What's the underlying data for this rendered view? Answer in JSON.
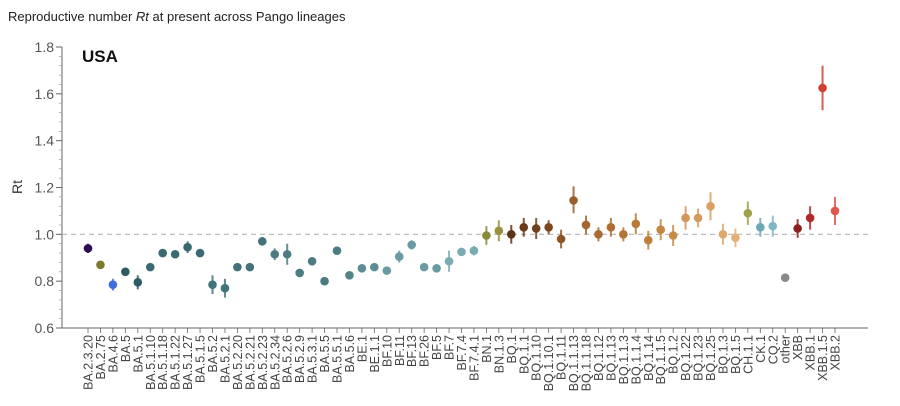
{
  "title_prefix": "Reproductive number ",
  "title_symbol": "Rt",
  "title_suffix": " at present across Pango lineages",
  "chart_data": {
    "type": "scatter",
    "subtype": "point-range",
    "panel_label": "USA",
    "ylabel": "Rt",
    "ylim": [
      0.6,
      1.8
    ],
    "yticks": [
      0.6,
      0.8,
      1.0,
      1.2,
      1.4,
      1.6,
      1.8
    ],
    "ytick_labels": [
      "0.6",
      "0.8",
      "1.0",
      "1.2",
      "1.4",
      "1.6",
      "1.8"
    ],
    "reference_line": 1.0,
    "reference_line_style": "dashed",
    "grid": false,
    "categories": [
      "BA.2.3.20",
      "BA.2.75",
      "BA.4.6",
      "BA.5",
      "BA.5.1",
      "BA.5.1.10",
      "BA.5.1.18",
      "BA.5.1.22",
      "BA.5.1.27",
      "BA.5.1.5",
      "BA.5.2",
      "BA.5.2.1",
      "BA.5.2.20",
      "BA.5.2.21",
      "BA.5.2.23",
      "BA.5.2.34",
      "BA.5.2.6",
      "BA.5.2.9",
      "BA.5.3.1",
      "BA.5.5",
      "BA.5.5.1",
      "BA.5.6",
      "BE.1",
      "BE.1.1",
      "BF.10",
      "BF.11",
      "BF.13",
      "BF.26",
      "BF.5",
      "BF.7",
      "BF.7.4",
      "BF.7.4.1",
      "BN.1",
      "BN.1.3",
      "BQ.1",
      "BQ.1.1",
      "BQ.1.10",
      "BQ.1.10.1",
      "BQ.1.11",
      "BQ.1.1.13",
      "BQ.1.1.18",
      "BQ.1.12",
      "BQ.1.13",
      "BQ.1.1.3",
      "BQ.1.1.4",
      "BQ.1.14",
      "BQ.1.1.5",
      "BQ.1.2",
      "BQ.1.22",
      "BQ.1.23",
      "BQ.1.25",
      "BQ.1.3",
      "BQ.1.5",
      "CH.1.1",
      "CK.1",
      "CQ.2",
      "other",
      "XBB",
      "XBB.1",
      "XBB.1.5",
      "XBB.2"
    ],
    "values": [
      0.94,
      0.87,
      0.785,
      0.84,
      0.795,
      0.86,
      0.92,
      0.915,
      0.945,
      0.92,
      0.785,
      0.77,
      0.86,
      0.86,
      0.97,
      0.915,
      0.915,
      0.835,
      0.885,
      0.8,
      0.93,
      0.825,
      0.855,
      0.86,
      0.845,
      0.905,
      0.955,
      0.86,
      0.855,
      0.885,
      0.925,
      0.93,
      0.995,
      1.015,
      1.0,
      1.03,
      1.025,
      1.03,
      0.98,
      1.145,
      1.04,
      1.0,
      1.03,
      1.0,
      1.045,
      0.975,
      1.02,
      0.995,
      1.07,
      1.07,
      1.12,
      1.0,
      0.985,
      1.09,
      1.03,
      1.035,
      0.815,
      1.025,
      1.07,
      1.625,
      1.1
    ],
    "lower": [
      0.92,
      0.855,
      0.76,
      0.825,
      0.765,
      0.845,
      0.905,
      0.9,
      0.92,
      0.905,
      0.745,
      0.73,
      0.845,
      0.845,
      0.955,
      0.89,
      0.87,
      0.82,
      0.87,
      0.785,
      0.915,
      0.81,
      0.84,
      0.845,
      0.83,
      0.88,
      0.935,
      0.845,
      0.84,
      0.84,
      0.91,
      0.91,
      0.955,
      0.97,
      0.96,
      0.99,
      0.98,
      1.0,
      0.94,
      1.09,
      1.0,
      0.97,
      0.99,
      0.97,
      1.0,
      0.935,
      0.975,
      0.95,
      1.02,
      1.03,
      1.06,
      0.955,
      0.945,
      1.04,
      0.99,
      0.99,
      0.81,
      0.985,
      1.02,
      1.53,
      1.04
    ],
    "upper": [
      0.96,
      0.885,
      0.81,
      0.855,
      0.825,
      0.875,
      0.935,
      0.93,
      0.97,
      0.935,
      0.825,
      0.81,
      0.875,
      0.875,
      0.985,
      0.94,
      0.96,
      0.85,
      0.9,
      0.815,
      0.945,
      0.84,
      0.87,
      0.875,
      0.86,
      0.93,
      0.975,
      0.875,
      0.87,
      0.93,
      0.94,
      0.95,
      1.035,
      1.06,
      1.04,
      1.07,
      1.07,
      1.06,
      1.02,
      1.205,
      1.08,
      1.03,
      1.07,
      1.03,
      1.09,
      1.015,
      1.065,
      1.04,
      1.12,
      1.11,
      1.18,
      1.045,
      1.025,
      1.14,
      1.07,
      1.08,
      0.82,
      1.065,
      1.12,
      1.72,
      1.16
    ],
    "colors": [
      "#2e0a57",
      "#7d7a2e",
      "#3f6fd6",
      "#2f5b62",
      "#2f5b62",
      "#3a6a71",
      "#3a6a71",
      "#3a6a71",
      "#3a6a71",
      "#3a6a71",
      "#43727a",
      "#43727a",
      "#43727a",
      "#43727a",
      "#43727a",
      "#4c7b83",
      "#4c7b83",
      "#4c7b83",
      "#4c7b83",
      "#4c7b83",
      "#4c7b83",
      "#538389",
      "#5d8c92",
      "#5d8c92",
      "#6a9aa2",
      "#6a9aa2",
      "#6a9aa2",
      "#6a9aa2",
      "#6a9aa2",
      "#7aabb3",
      "#7aabb3",
      "#7aabb3",
      "#8a8a3a",
      "#9a9040",
      "#5a3318",
      "#6a3a1a",
      "#72411c",
      "#7a461e",
      "#8b5423",
      "#9b5e2a",
      "#a36630",
      "#a96a32",
      "#ae6e33",
      "#b37436",
      "#b87a38",
      "#bd803b",
      "#c2863f",
      "#c78c44",
      "#d4955a",
      "#d69a5e",
      "#dba064",
      "#e0a86b",
      "#e5b073",
      "#a0a04a",
      "#6aa8b8",
      "#7fb7c2",
      "#8a8a8a",
      "#8b1e1e",
      "#b02a2a",
      "#d43f35",
      "#e0564d"
    ]
  }
}
